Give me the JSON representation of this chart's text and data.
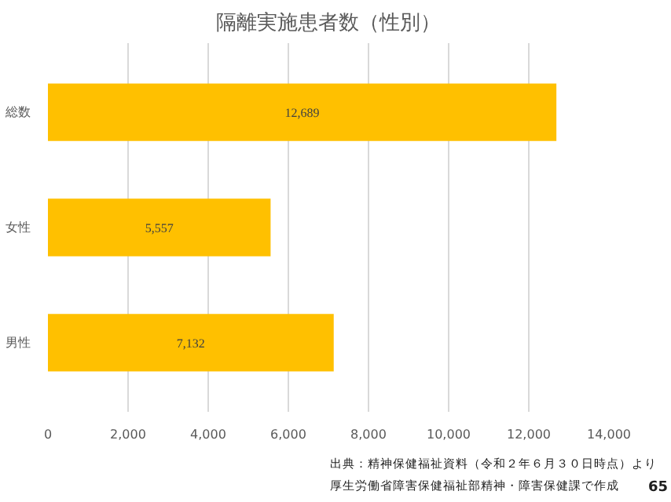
{
  "chart_data": {
    "type": "bar",
    "orientation": "horizontal",
    "title": "隔離実施患者数（性別）",
    "categories": [
      "総数",
      "女性",
      "男性"
    ],
    "values": [
      12689,
      5557,
      7132
    ],
    "value_labels": [
      "12,689",
      "5,557",
      "7,132"
    ],
    "color": "#ffc000",
    "xlim": [
      0,
      14000
    ],
    "xticks": [
      {
        "value": 0,
        "label": "0"
      },
      {
        "value": 2000,
        "label": "2,000"
      },
      {
        "value": 4000,
        "label": "4,000"
      },
      {
        "value": 6000,
        "label": "6,000"
      },
      {
        "value": 8000,
        "label": "8,000"
      },
      {
        "value": 10000,
        "label": "10,000"
      },
      {
        "value": 12000,
        "label": "12,000"
      },
      {
        "value": 14000,
        "label": "14,000"
      }
    ],
    "grid": "x",
    "annotations": [
      "出典：精神保健福祉資料（令和２年６月３０日時点）より",
      "厚生労働省障害保健福祉部精神・障害保健課で作成",
      "65"
    ]
  }
}
